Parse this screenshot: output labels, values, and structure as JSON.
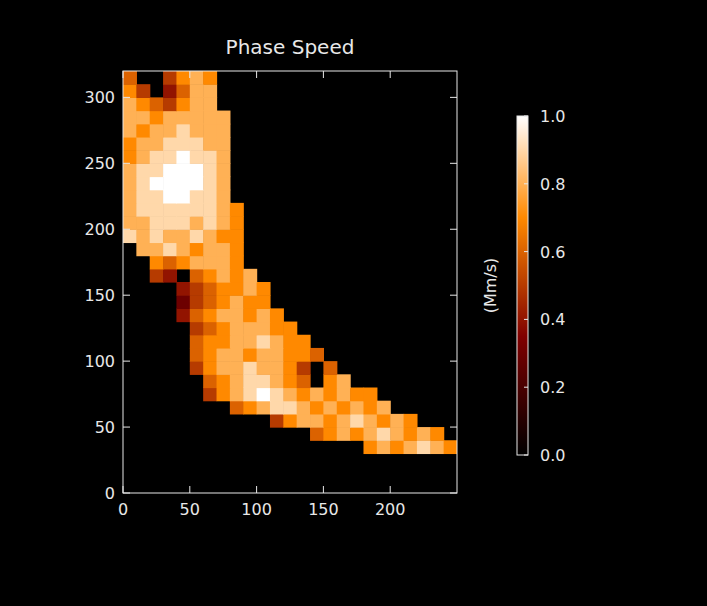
{
  "chart_data": {
    "type": "heatmap",
    "title": "Phase Speed",
    "x": [
      5,
      15,
      25,
      35,
      45,
      55,
      65,
      75,
      85,
      95,
      105,
      115,
      125,
      135,
      145,
      155,
      165,
      175,
      185,
      195,
      205,
      215,
      225,
      235,
      245
    ],
    "y": [
      5,
      15,
      25,
      35,
      45,
      55,
      65,
      75,
      85,
      95,
      105,
      115,
      125,
      135,
      145,
      155,
      165,
      175,
      185,
      195,
      205,
      215,
      225,
      235,
      245,
      255,
      265,
      275,
      285,
      295,
      305,
      315
    ],
    "values": [
      [
        null,
        null,
        null,
        null,
        null,
        null,
        null,
        null,
        null,
        null,
        null,
        null,
        null,
        null,
        null,
        null,
        null,
        null,
        null,
        null,
        null,
        null,
        null,
        null,
        null
      ],
      [
        null,
        null,
        null,
        null,
        null,
        null,
        null,
        null,
        null,
        null,
        null,
        null,
        null,
        null,
        null,
        null,
        null,
        null,
        null,
        null,
        null,
        null,
        null,
        null,
        null
      ],
      [
        null,
        null,
        null,
        null,
        null,
        null,
        null,
        null,
        null,
        null,
        null,
        null,
        null,
        null,
        null,
        null,
        null,
        null,
        null,
        null,
        null,
        null,
        null,
        null,
        null
      ],
      [
        null,
        null,
        null,
        null,
        null,
        null,
        null,
        null,
        null,
        null,
        null,
        null,
        null,
        null,
        null,
        null,
        null,
        null,
        0.7,
        0.8,
        0.7,
        0.8,
        0.9,
        0.8,
        0.7
      ],
      [
        null,
        null,
        null,
        null,
        null,
        null,
        null,
        null,
        null,
        null,
        null,
        null,
        null,
        null,
        0.6,
        0.7,
        0.8,
        0.7,
        0.8,
        0.9,
        0.8,
        0.7,
        0.8,
        0.7,
        null
      ],
      [
        null,
        null,
        null,
        null,
        null,
        null,
        null,
        null,
        null,
        null,
        null,
        0.5,
        0.7,
        0.8,
        0.8,
        0.7,
        0.8,
        0.9,
        0.8,
        0.7,
        0.8,
        0.7,
        null,
        null,
        null
      ],
      [
        null,
        null,
        null,
        null,
        null,
        null,
        null,
        null,
        0.6,
        0.7,
        0.8,
        0.9,
        0.9,
        0.8,
        0.7,
        0.8,
        0.7,
        0.8,
        0.7,
        0.8,
        null,
        null,
        null,
        null,
        null
      ],
      [
        null,
        null,
        null,
        null,
        null,
        null,
        0.5,
        0.7,
        0.8,
        0.9,
        1.0,
        0.9,
        0.8,
        0.7,
        0.8,
        0.7,
        0.8,
        0.7,
        0.7,
        null,
        null,
        null,
        null,
        null,
        null
      ],
      [
        null,
        null,
        null,
        null,
        null,
        null,
        0.6,
        0.7,
        0.8,
        0.9,
        0.9,
        0.8,
        0.7,
        0.6,
        null,
        0.7,
        0.8,
        null,
        null,
        null,
        null,
        null,
        null,
        null,
        null
      ],
      [
        null,
        null,
        null,
        null,
        null,
        0.5,
        0.7,
        0.8,
        0.8,
        0.9,
        0.8,
        0.8,
        0.7,
        0.5,
        null,
        0.6,
        null,
        null,
        null,
        null,
        null,
        null,
        null,
        null,
        null
      ],
      [
        null,
        null,
        null,
        null,
        null,
        0.6,
        0.7,
        0.8,
        0.8,
        0.7,
        0.8,
        0.8,
        0.7,
        0.7,
        0.6,
        null,
        null,
        null,
        null,
        null,
        null,
        null,
        null,
        null,
        null
      ],
      [
        null,
        null,
        null,
        null,
        null,
        0.6,
        0.7,
        0.7,
        0.8,
        0.8,
        0.9,
        0.8,
        0.7,
        0.7,
        null,
        null,
        null,
        null,
        null,
        null,
        null,
        null,
        null,
        null,
        null
      ],
      [
        null,
        null,
        null,
        null,
        null,
        0.5,
        0.6,
        0.7,
        0.8,
        0.8,
        0.8,
        0.7,
        0.7,
        null,
        null,
        null,
        null,
        null,
        null,
        null,
        null,
        null,
        null,
        null,
        null
      ],
      [
        null,
        null,
        null,
        null,
        0.4,
        0.6,
        0.7,
        0.8,
        0.8,
        0.7,
        0.8,
        0.7,
        null,
        null,
        null,
        null,
        null,
        null,
        null,
        null,
        null,
        null,
        null,
        null,
        null
      ],
      [
        null,
        null,
        null,
        null,
        0.3,
        0.5,
        0.6,
        0.7,
        0.8,
        0.7,
        0.7,
        null,
        null,
        null,
        null,
        null,
        null,
        null,
        null,
        null,
        null,
        null,
        null,
        null,
        null
      ],
      [
        null,
        null,
        null,
        null,
        0.4,
        0.5,
        0.6,
        0.7,
        0.7,
        0.8,
        0.7,
        null,
        null,
        null,
        null,
        null,
        null,
        null,
        null,
        null,
        null,
        null,
        null,
        null,
        null
      ],
      [
        null,
        null,
        0.5,
        0.4,
        null,
        0.6,
        0.7,
        0.8,
        0.7,
        0.8,
        null,
        null,
        null,
        null,
        null,
        null,
        null,
        null,
        null,
        null,
        null,
        null,
        null,
        null,
        null
      ],
      [
        null,
        null,
        0.7,
        0.6,
        0.7,
        0.8,
        0.8,
        0.8,
        0.7,
        null,
        null,
        null,
        null,
        null,
        null,
        null,
        null,
        null,
        null,
        null,
        null,
        null,
        null,
        null,
        null
      ],
      [
        null,
        0.8,
        0.8,
        0.9,
        0.8,
        0.7,
        0.8,
        0.8,
        0.7,
        null,
        null,
        null,
        null,
        null,
        null,
        null,
        null,
        null,
        null,
        null,
        null,
        null,
        null,
        null,
        null
      ],
      [
        0.9,
        0.8,
        0.9,
        0.8,
        0.8,
        0.9,
        0.8,
        0.7,
        0.7,
        null,
        null,
        null,
        null,
        null,
        null,
        null,
        null,
        null,
        null,
        null,
        null,
        null,
        null,
        null,
        null
      ],
      [
        0.8,
        0.8,
        0.9,
        0.9,
        0.9,
        0.8,
        0.9,
        0.8,
        0.7,
        null,
        null,
        null,
        null,
        null,
        null,
        null,
        null,
        null,
        null,
        null,
        null,
        null,
        null,
        null,
        null
      ],
      [
        0.8,
        0.9,
        0.9,
        0.9,
        0.9,
        0.9,
        0.9,
        0.8,
        0.7,
        null,
        null,
        null,
        null,
        null,
        null,
        null,
        null,
        null,
        null,
        null,
        null,
        null,
        null,
        null,
        null
      ],
      [
        0.8,
        0.9,
        0.9,
        1.0,
        1.0,
        0.9,
        0.9,
        0.8,
        null,
        null,
        null,
        null,
        null,
        null,
        null,
        null,
        null,
        null,
        null,
        null,
        null,
        null,
        null,
        null,
        null
      ],
      [
        0.8,
        0.9,
        1.0,
        1.0,
        1.0,
        1.0,
        0.9,
        0.8,
        null,
        null,
        null,
        null,
        null,
        null,
        null,
        null,
        null,
        null,
        null,
        null,
        null,
        null,
        null,
        null,
        null
      ],
      [
        0.8,
        0.9,
        0.9,
        1.0,
        1.0,
        1.0,
        0.9,
        0.8,
        null,
        null,
        null,
        null,
        null,
        null,
        null,
        null,
        null,
        null,
        null,
        null,
        null,
        null,
        null,
        null,
        null
      ],
      [
        0.7,
        0.8,
        0.9,
        0.9,
        1.0,
        0.9,
        0.9,
        0.8,
        null,
        null,
        null,
        null,
        null,
        null,
        null,
        null,
        null,
        null,
        null,
        null,
        null,
        null,
        null,
        null,
        null
      ],
      [
        0.7,
        0.8,
        0.8,
        0.9,
        0.9,
        0.9,
        0.8,
        0.8,
        null,
        null,
        null,
        null,
        null,
        null,
        null,
        null,
        null,
        null,
        null,
        null,
        null,
        null,
        null,
        null,
        null
      ],
      [
        0.8,
        0.7,
        0.8,
        0.8,
        0.9,
        0.8,
        0.8,
        0.8,
        null,
        null,
        null,
        null,
        null,
        null,
        null,
        null,
        null,
        null,
        null,
        null,
        null,
        null,
        null,
        null,
        null
      ],
      [
        0.8,
        0.8,
        0.7,
        0.8,
        0.8,
        0.8,
        0.8,
        0.8,
        null,
        null,
        null,
        null,
        null,
        null,
        null,
        null,
        null,
        null,
        null,
        null,
        null,
        null,
        null,
        null,
        null
      ],
      [
        0.8,
        0.7,
        0.6,
        0.5,
        0.7,
        0.8,
        0.8,
        null,
        null,
        null,
        null,
        null,
        null,
        null,
        null,
        null,
        null,
        null,
        null,
        null,
        null,
        null,
        null,
        null,
        null
      ],
      [
        0.7,
        0.5,
        null,
        0.4,
        0.6,
        0.8,
        0.8,
        null,
        null,
        null,
        null,
        null,
        null,
        null,
        null,
        null,
        null,
        null,
        null,
        null,
        null,
        null,
        null,
        null,
        null
      ],
      [
        0.6,
        null,
        null,
        0.5,
        0.7,
        0.8,
        0.7,
        null,
        null,
        null,
        null,
        null,
        null,
        null,
        null,
        null,
        null,
        null,
        null,
        null,
        null,
        null,
        null,
        null,
        null
      ]
    ],
    "xlim": [
      0,
      250
    ],
    "ylim": [
      0,
      320
    ],
    "xticks": [
      0,
      50,
      100,
      150,
      200
    ],
    "yticks": [
      0,
      50,
      100,
      150,
      200,
      250,
      300
    ],
    "colorbar": {
      "range": [
        0,
        1
      ],
      "label": "(Mm/s)",
      "ticks": [
        {
          "value": 0,
          "label": "0.0"
        },
        {
          "value": 0.2,
          "label": "0.2"
        },
        {
          "value": 0.4,
          "label": "0.4"
        },
        {
          "value": 0.6,
          "label": "0.6"
        },
        {
          "value": 0.8,
          "label": "0.8"
        },
        {
          "value": 1,
          "label": "1.0"
        }
      ]
    }
  }
}
